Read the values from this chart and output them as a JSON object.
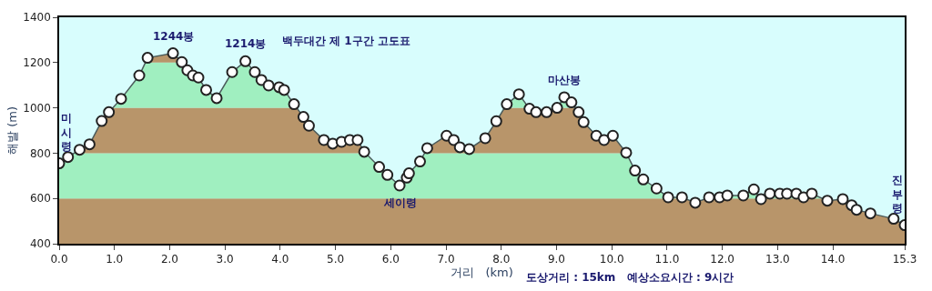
{
  "chart_data": {
    "type": "line",
    "title": "백두대간 제 1구간 고도표",
    "xlabel": "거리   (km)",
    "ylabel": "해발 (m)",
    "x": [
      0,
      0.16,
      0.37,
      0.55,
      0.77,
      0.9,
      1.12,
      1.45,
      1.6,
      2.06,
      2.22,
      2.32,
      2.42,
      2.52,
      2.66,
      2.85,
      3.13,
      3.37,
      3.54,
      3.66,
      3.79,
      3.98,
      4.07,
      4.25,
      4.42,
      4.52,
      4.79,
      4.95,
      5.11,
      5.26,
      5.4,
      5.52,
      5.79,
      5.94,
      6.16,
      6.29,
      6.33,
      6.53,
      6.66,
      7.01,
      7.14,
      7.25,
      7.42,
      7.71,
      7.91,
      8.1,
      8.32,
      8.51,
      8.63,
      8.82,
      9.01,
      9.14,
      9.27,
      9.4,
      9.49,
      9.72,
      9.86,
      10.02,
      10.26,
      10.42,
      10.57,
      10.81,
      11.02,
      11.27,
      11.51,
      11.76,
      11.95,
      12.09,
      12.38,
      12.57,
      12.7,
      12.86,
      13.04,
      13.17,
      13.34,
      13.47,
      13.62,
      13.9,
      14.18,
      14.34,
      14.43,
      14.68,
      15.1,
      15.3
    ],
    "series": [
      {
        "color": "#4a5a5a",
        "values": [
          755,
          783,
          815,
          839,
          942,
          981,
          1040,
          1143,
          1221,
          1241,
          1202,
          1166,
          1143,
          1134,
          1079,
          1043,
          1158,
          1206,
          1158,
          1123,
          1099,
          1091,
          1079,
          1016,
          960,
          921,
          858,
          842,
          850,
          858,
          858,
          806,
          739,
          704,
          657,
          692,
          711,
          763,
          822,
          877,
          858,
          826,
          818,
          866,
          941,
          1016,
          1060,
          996,
          981,
          981,
          1000,
          1047,
          1024,
          981,
          937,
          877,
          858,
          877,
          802,
          723,
          684,
          644,
          605,
          605,
          581,
          605,
          605,
          613,
          613,
          640,
          597,
          621,
          621,
          621,
          621,
          605,
          621,
          590,
          597,
          570,
          550,
          534,
          510,
          482
        ]
      }
    ],
    "xlim": [
      0,
      15.3
    ],
    "ylim": [
      400,
      1400
    ],
    "xticks": [
      {
        "value": 0,
        "label": "0.0"
      },
      {
        "value": 1,
        "label": "1.0"
      },
      {
        "value": 2,
        "label": "2.0"
      },
      {
        "value": 3,
        "label": "3.0"
      },
      {
        "value": 4,
        "label": "4.0"
      },
      {
        "value": 5,
        "label": "5.0"
      },
      {
        "value": 6,
        "label": "6.0"
      },
      {
        "value": 7,
        "label": "7.0"
      },
      {
        "value": 8,
        "label": "8.0"
      },
      {
        "value": 9,
        "label": "9.0"
      },
      {
        "value": 10,
        "label": "10.0"
      },
      {
        "value": 11,
        "label": "11.0"
      },
      {
        "value": 12,
        "label": "12.0"
      },
      {
        "value": 13,
        "label": "13.0"
      },
      {
        "value": 14,
        "label": "14.0"
      },
      15.3
    ],
    "yticks": [
      400,
      600,
      800,
      1000,
      1200,
      1400
    ],
    "bands": [
      {
        "axis": "y",
        "from": 400,
        "to": 600,
        "color": "#b8956a"
      },
      {
        "axis": "y",
        "from": 600,
        "to": 800,
        "color": "#a0efc0"
      },
      {
        "axis": "y",
        "from": 800,
        "to": 1000,
        "color": "#b8956a"
      },
      {
        "axis": "y",
        "from": 1000,
        "to": 1200,
        "color": "#a0efc0"
      },
      {
        "axis": "y",
        "from": 1200,
        "to": 1400,
        "color": "#b8956a"
      }
    ],
    "annotations": [
      {
        "text": "미시령",
        "x": 0,
        "y": 755
      },
      {
        "text": "1244봉",
        "x": 2.06,
        "y": 1241
      },
      {
        "text": "1214봉",
        "x": 3.37,
        "y": 1206
      },
      {
        "text": "세이령",
        "x": 6.16,
        "y": 657
      },
      {
        "text": "마산봉",
        "x": 9.14,
        "y": 1047
      },
      {
        "text": "진부령",
        "x": 15.3,
        "y": 482
      },
      "도상거리 : 15km   예상소요시간 : 9시간"
    ],
    "marker": "circle",
    "line_style": "solid",
    "grid": false
  }
}
